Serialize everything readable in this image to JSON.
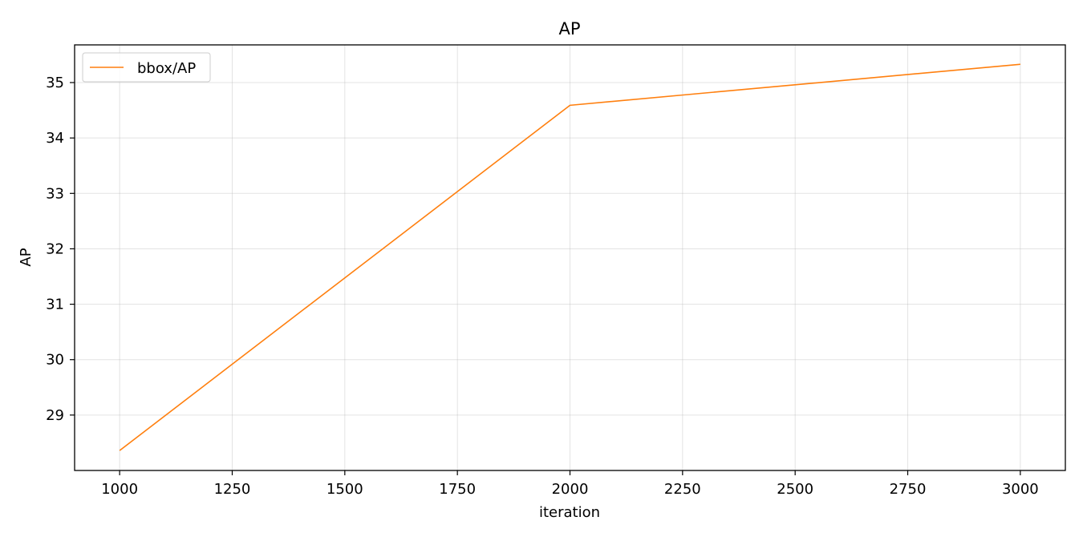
{
  "chart_data": {
    "type": "line",
    "title": "AP",
    "xlabel": "iteration",
    "ylabel": "AP",
    "xlim": [
      900,
      3100
    ],
    "ylim": [
      28.0,
      35.68
    ],
    "xticks": [
      1000,
      1250,
      1500,
      1750,
      2000,
      2250,
      2500,
      2750,
      3000
    ],
    "yticks": [
      29,
      30,
      31,
      32,
      33,
      34,
      35
    ],
    "grid": true,
    "legend_position": "upper-left",
    "series": [
      {
        "name": "bbox/AP",
        "color": "#ff7f0e",
        "x": [
          1000,
          2000,
          3000
        ],
        "y": [
          28.36,
          34.59,
          35.33
        ]
      }
    ]
  }
}
